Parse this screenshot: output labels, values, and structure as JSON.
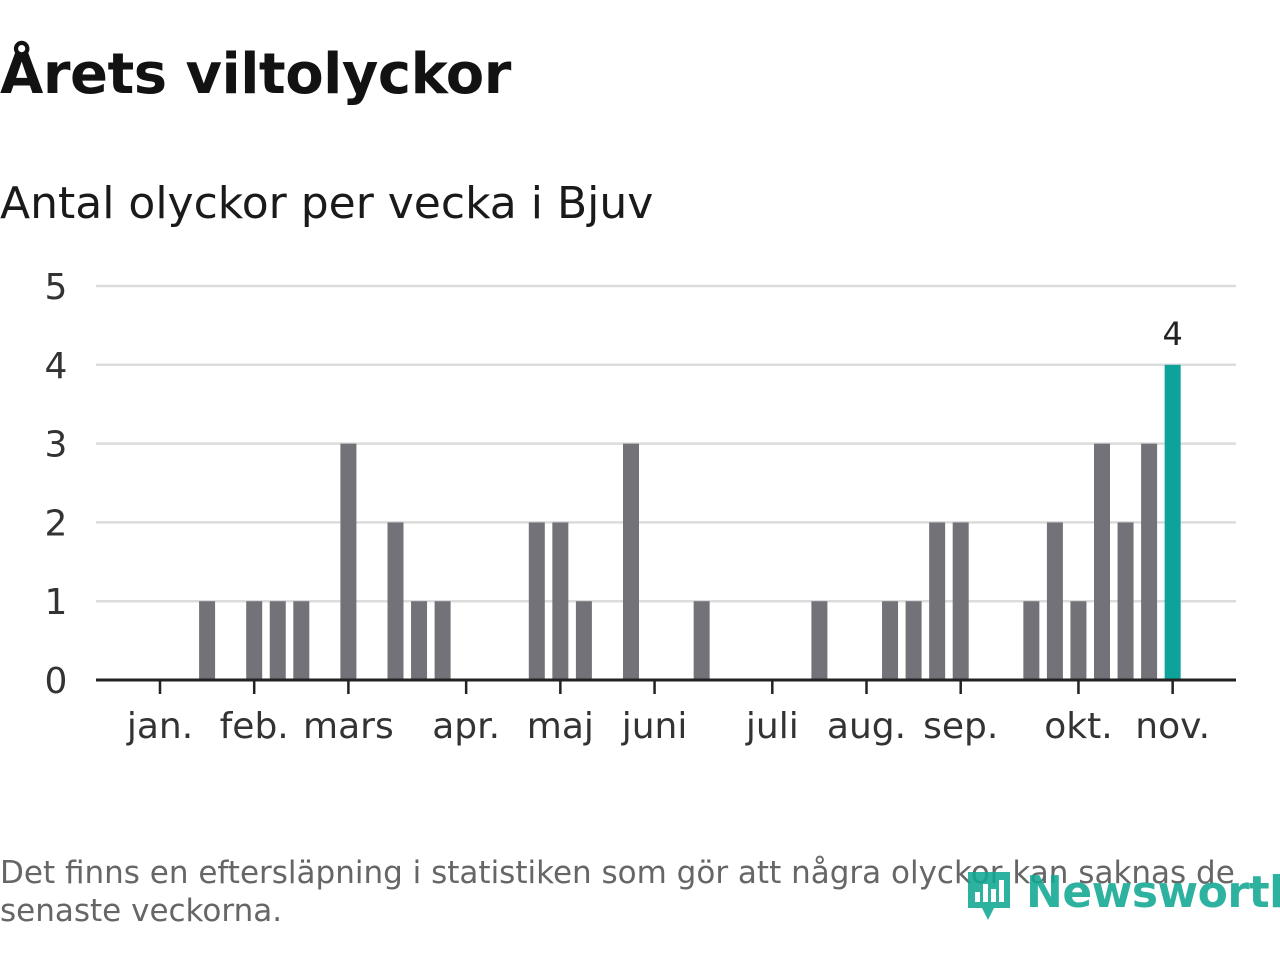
{
  "title": "Årets viltolyckor",
  "subtitle": "Antal olyckor per vecka i Bjuv",
  "note": "Det finns en eftersläpning i statistiken som gör att några olyckor kan saknas de senaste veckorna.",
  "brand": "Newsworthy",
  "colors": {
    "bar": "#737278",
    "highlight": "#0ea39a",
    "brand": "#11a893",
    "grid": "#dcdcdc",
    "axis": "#222222"
  },
  "chart_data": {
    "type": "bar",
    "title": "Årets viltolyckor",
    "subtitle": "Antal olyckor per vecka i Bjuv",
    "xlabel": "",
    "ylabel": "",
    "ylim": [
      0,
      5
    ],
    "yticks": [
      0,
      1,
      2,
      3,
      4,
      5
    ],
    "grid": true,
    "weeks": [
      1,
      2,
      3,
      4,
      5,
      6,
      7,
      8,
      9,
      10,
      11,
      12,
      13,
      14,
      15,
      16,
      17,
      18,
      19,
      20,
      21,
      22,
      23,
      24,
      25,
      26,
      27,
      28,
      29,
      30,
      31,
      32,
      33,
      34,
      35,
      36,
      37,
      38,
      39,
      40,
      41,
      42,
      43,
      44,
      45
    ],
    "values": [
      0,
      0,
      1,
      0,
      1,
      1,
      1,
      0,
      3,
      0,
      2,
      1,
      1,
      0,
      0,
      0,
      2,
      2,
      1,
      0,
      3,
      0,
      0,
      1,
      0,
      0,
      0,
      0,
      1,
      0,
      0,
      1,
      1,
      2,
      2,
      0,
      0,
      1,
      2,
      1,
      3,
      2,
      3,
      4,
      0
    ],
    "highlight_week": 44,
    "highlight_label": "4",
    "month_ticks": [
      {
        "label": "jan.",
        "week": 1
      },
      {
        "label": "feb.",
        "week": 5
      },
      {
        "label": "mars",
        "week": 9
      },
      {
        "label": "apr.",
        "week": 14
      },
      {
        "label": "maj",
        "week": 18
      },
      {
        "label": "juni",
        "week": 22
      },
      {
        "label": "juli",
        "week": 27
      },
      {
        "label": "aug.",
        "week": 31
      },
      {
        "label": "sep.",
        "week": 35
      },
      {
        "label": "okt.",
        "week": 40
      },
      {
        "label": "nov.",
        "week": 44
      }
    ]
  }
}
